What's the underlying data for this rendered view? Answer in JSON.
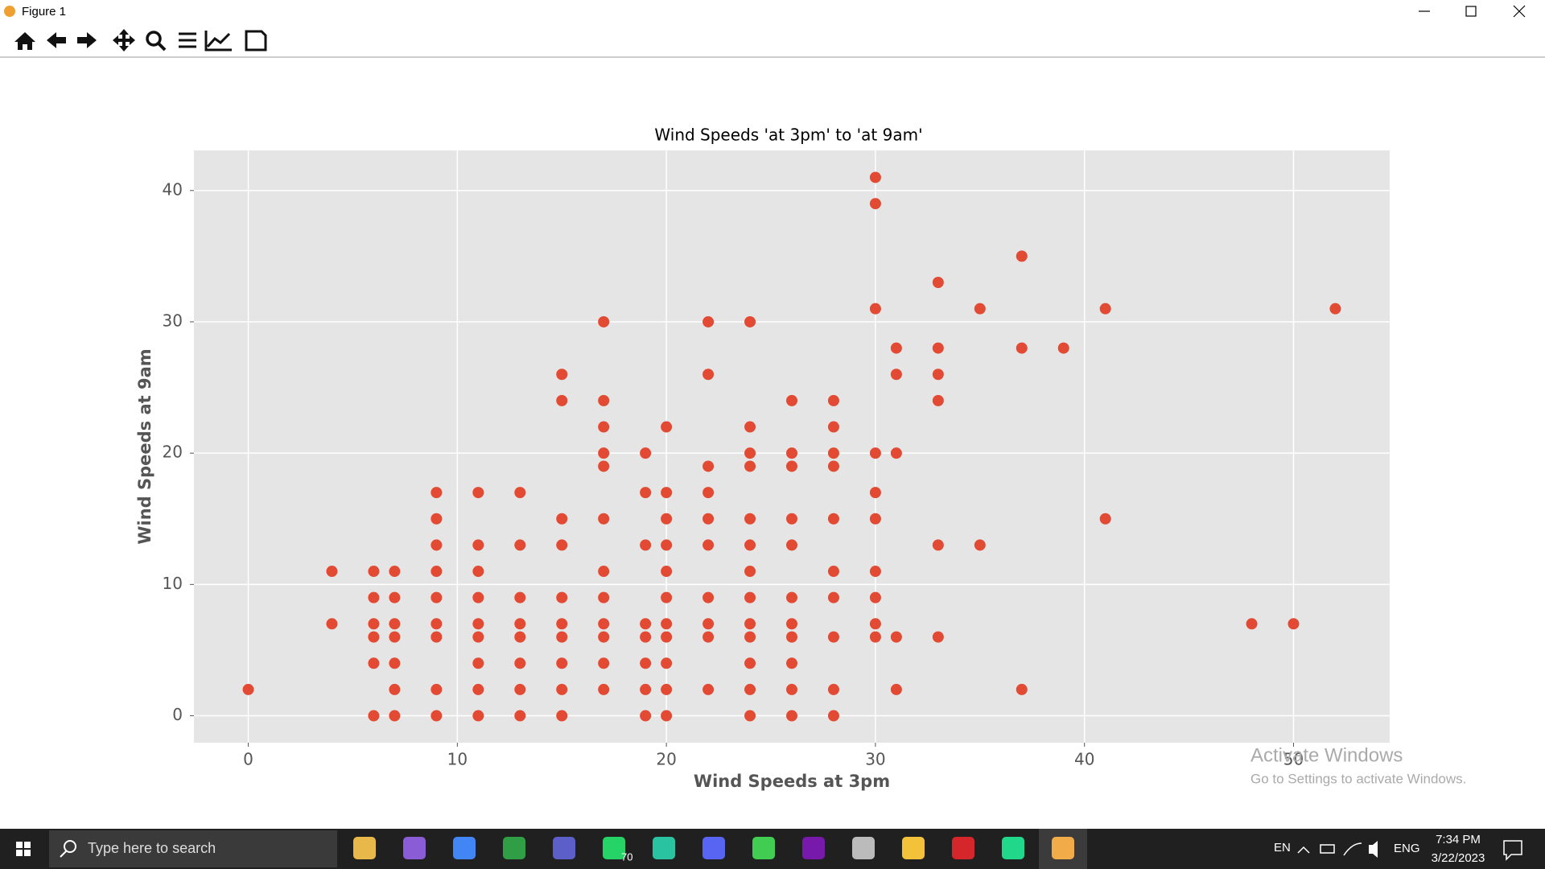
{
  "window": {
    "title": "Figure 1"
  },
  "chart_data": {
    "type": "scatter",
    "title": "Wind Speeds 'at 3pm' to 'at 9am'",
    "x_label": "Wind Speeds at 3pm",
    "y_label": "Wind Speeds at 9am",
    "color": "#E24A33",
    "grid": true,
    "xlim": [
      -2.6,
      54.6
    ],
    "ylim": [
      -2.05,
      43.05
    ],
    "xticks": [
      0,
      10,
      20,
      30,
      40,
      50
    ],
    "yticks": [
      0,
      10,
      20,
      30,
      40
    ],
    "x": [
      0,
      4,
      4,
      6,
      6,
      6,
      6,
      6,
      6,
      7,
      7,
      7,
      7,
      7,
      7,
      7,
      9,
      9,
      9,
      9,
      9,
      9,
      9,
      9,
      9,
      11,
      11,
      11,
      11,
      11,
      11,
      11,
      11,
      11,
      13,
      13,
      13,
      13,
      13,
      13,
      13,
      13,
      15,
      15,
      15,
      15,
      15,
      15,
      15,
      15,
      15,
      15,
      17,
      17,
      17,
      17,
      17,
      17,
      17,
      17,
      17,
      17,
      17,
      17,
      19,
      19,
      19,
      19,
      19,
      19,
      19,
      19,
      20,
      20,
      20,
      20,
      20,
      20,
      20,
      20,
      20,
      20,
      20,
      22,
      22,
      22,
      22,
      22,
      22,
      22,
      22,
      22,
      22,
      24,
      24,
      24,
      24,
      24,
      24,
      24,
      24,
      24,
      24,
      24,
      24,
      24,
      26,
      26,
      26,
      26,
      26,
      26,
      26,
      26,
      26,
      26,
      26,
      28,
      28,
      28,
      28,
      28,
      28,
      28,
      28,
      28,
      28,
      30,
      30,
      30,
      30,
      30,
      30,
      30,
      30,
      30,
      30,
      31,
      31,
      31,
      31,
      31,
      33,
      33,
      33,
      33,
      33,
      33,
      35,
      35,
      37,
      37,
      37,
      39,
      41,
      41,
      48,
      50,
      52
    ],
    "y": [
      2,
      11,
      7,
      11,
      9,
      7,
      6,
      4,
      0,
      11,
      9,
      7,
      6,
      4,
      2,
      0,
      17,
      15,
      13,
      11,
      9,
      7,
      6,
      2,
      0,
      17,
      13,
      11,
      9,
      7,
      6,
      4,
      2,
      0,
      17,
      13,
      9,
      7,
      6,
      4,
      2,
      0,
      26,
      24,
      15,
      13,
      9,
      7,
      6,
      4,
      2,
      0,
      30,
      24,
      22,
      20,
      19,
      15,
      11,
      9,
      7,
      6,
      4,
      2,
      20,
      17,
      13,
      7,
      6,
      4,
      2,
      0,
      22,
      17,
      15,
      13,
      11,
      9,
      7,
      6,
      4,
      2,
      0,
      30,
      26,
      19,
      17,
      15,
      13,
      9,
      7,
      6,
      2,
      30,
      22,
      20,
      19,
      15,
      13,
      11,
      9,
      7,
      6,
      4,
      2,
      0,
      24,
      20,
      19,
      15,
      13,
      9,
      7,
      6,
      4,
      2,
      0,
      24,
      22,
      20,
      19,
      15,
      11,
      9,
      6,
      2,
      0,
      41,
      39,
      31,
      20,
      17,
      15,
      11,
      9,
      7,
      6,
      28,
      26,
      20,
      6,
      2,
      33,
      28,
      26,
      24,
      13,
      6,
      31,
      13,
      35,
      28,
      2,
      28,
      31,
      15,
      7,
      7,
      31
    ]
  },
  "watermark": {
    "title": "Activate Windows",
    "subtitle": "Go to Settings to activate Windows."
  },
  "taskbar": {
    "search": "Type here to search",
    "badge": "70",
    "lang1": "EN",
    "lang2": "ENG",
    "time": "7:34 PM",
    "date": "3/22/2023"
  }
}
